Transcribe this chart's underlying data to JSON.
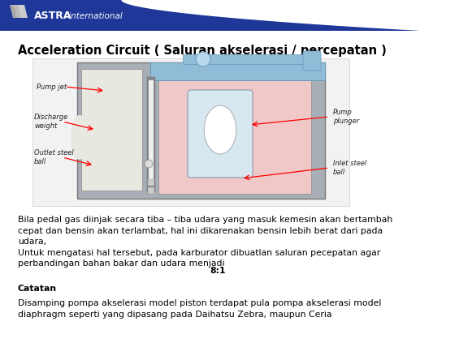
{
  "header_bg_color": "#1e3799",
  "slide_bg_color": "#ffffff",
  "logo_bold": "ASTRA",
  "logo_regular": " international",
  "title": "Acceleration Circuit ( Saluran akselerasi / percepatan )",
  "title_fontsize": 10.5,
  "body_text": "Bila pedal gas diinjak secara tiba – tiba udara yang masuk kemesin akan bertambah\ncepat dan bensin akan terlambat, hal ini dikarenakan bensin lebih berat dari pada\nudara,\nUntuk mengatasi hal tersebut, pada karburator dibuatlan saluran pecepatan agar\nperbandingan bahan bakar dan udara menjadi",
  "bold_suffix": "8:1",
  "body_fontsize": 7.8,
  "catatan_label": "Catatan",
  "catatan_body": "Disamping pompa akselerasi model piston terdapat pula pompa akselerasi model\ndiaphragm seperti yang dipasang pada Daihatsu Zebra, maupun Ceria",
  "catatan_fontsize": 7.8,
  "diag_labels": {
    "pump_jet": "Pump jet",
    "discharge_weight": "Discharge\nweight",
    "outlet_steel_ball": "Outlet steel\nball",
    "pump_plunger": "Pump\nplunger",
    "inlet_steel_ball": "Inlet steel\nball"
  }
}
